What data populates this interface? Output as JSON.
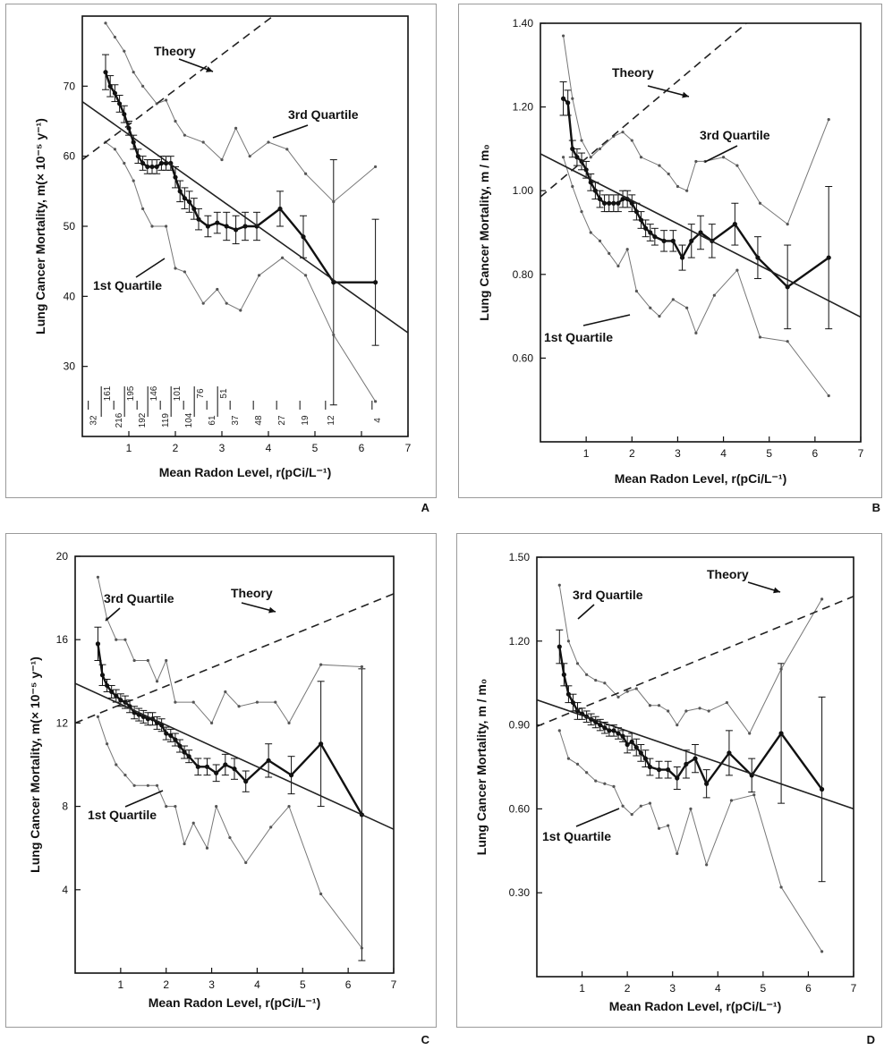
{
  "chart_data": [
    {
      "id": "A",
      "type": "line",
      "panel_letter": "A",
      "xlabel": "Mean Radon Level, r(pCi/L⁻¹)",
      "ylabel": "Lung Cancer Mortality, m(× 10⁻⁵ y⁻¹)",
      "xlim": [
        0,
        7
      ],
      "ylim": [
        20,
        80
      ],
      "x_ticks": [
        1,
        2,
        3,
        4,
        5,
        6,
        7
      ],
      "y_ticks": [
        30,
        40,
        50,
        60,
        70
      ],
      "y_tick_decimals": 0,
      "annotations": {
        "theory": "Theory",
        "third_quartile": "3rd Quartile",
        "first_quartile": "1st Quartile"
      },
      "series": [
        {
          "role": "mean",
          "x": [
            0.5,
            0.6,
            0.7,
            0.8,
            0.9,
            1.0,
            1.1,
            1.2,
            1.3,
            1.4,
            1.5,
            1.6,
            1.7,
            1.8,
            1.9,
            2.0,
            2.1,
            2.2,
            2.3,
            2.4,
            2.5,
            2.7,
            2.9,
            3.1,
            3.3,
            3.5,
            3.75,
            4.25,
            4.75,
            5.4,
            6.3
          ],
          "y": [
            72,
            70,
            69,
            67.5,
            66,
            64,
            62,
            60,
            59,
            58.5,
            58.5,
            58.5,
            59,
            59,
            59,
            57,
            55,
            54,
            53.5,
            52.5,
            51,
            50,
            50.5,
            50,
            49.5,
            50,
            50,
            52.5,
            48.5,
            42,
            42
          ],
          "err": [
            2.5,
            1.5,
            1.2,
            1.2,
            1.2,
            1.0,
            1.0,
            1.0,
            1.0,
            1.0,
            1.0,
            1.0,
            1.0,
            1.0,
            1.0,
            1.5,
            1.5,
            1.5,
            1.5,
            1.5,
            1.5,
            1.5,
            1.5,
            2.0,
            2.0,
            2.0,
            2.0,
            2.5,
            3.0,
            17.5,
            9.0
          ]
        },
        {
          "role": "third_quartile",
          "x": [
            0.5,
            0.7,
            0.9,
            1.1,
            1.3,
            1.6,
            1.8,
            2.0,
            2.2,
            2.6,
            3.0,
            3.3,
            3.6,
            4.0,
            4.4,
            4.8,
            5.4,
            6.3
          ],
          "y": [
            79,
            77,
            75,
            72,
            70,
            67.5,
            68,
            65,
            63,
            62,
            59.5,
            64,
            60,
            62,
            61,
            57.5,
            53.5,
            58.5
          ]
        },
        {
          "role": "first_quartile",
          "x": [
            0.5,
            0.7,
            0.9,
            1.1,
            1.3,
            1.5,
            1.8,
            2.0,
            2.2,
            2.6,
            2.9,
            3.1,
            3.4,
            3.8,
            4.3,
            4.8,
            5.4,
            6.3
          ],
          "y": [
            62,
            61,
            59,
            56.5,
            52.5,
            50,
            50,
            44,
            43.5,
            39,
            41,
            39,
            38,
            43,
            45.5,
            43,
            34.5,
            25
          ]
        },
        {
          "role": "fit",
          "x": [
            0,
            7
          ],
          "y": [
            67.8,
            34.8
          ]
        },
        {
          "role": "theory",
          "x": [
            0,
            4.5
          ],
          "y": [
            59.5,
            82
          ]
        }
      ],
      "bin_counts": {
        "top": [
          "161",
          "195",
          "146",
          "101",
          "76",
          "51"
        ],
        "bottom": [
          "32",
          "216",
          "192",
          "119",
          "104",
          "61",
          "37",
          "48",
          "27",
          "19",
          "12",
          "4"
        ]
      }
    },
    {
      "id": "B",
      "type": "line",
      "panel_letter": "B",
      "xlabel": "Mean Radon Level, r(pCi/L⁻¹)",
      "ylabel": "Lung Cancer Mortality, m / m₀",
      "xlim": [
        0,
        7
      ],
      "ylim": [
        0.4,
        1.4
      ],
      "x_ticks": [
        1,
        2,
        3,
        4,
        5,
        6,
        7
      ],
      "y_ticks": [
        0.6,
        0.8,
        1.0,
        1.2,
        1.4
      ],
      "y_tick_decimals": 2,
      "annotations": {
        "theory": "Theory",
        "third_quartile": "3rd Quartile",
        "first_quartile": "1st Quartile"
      },
      "series": [
        {
          "role": "mean",
          "x": [
            0.5,
            0.6,
            0.7,
            0.8,
            0.9,
            1.0,
            1.1,
            1.2,
            1.3,
            1.4,
            1.5,
            1.6,
            1.7,
            1.8,
            1.9,
            2.0,
            2.1,
            2.2,
            2.3,
            2.4,
            2.5,
            2.7,
            2.9,
            3.1,
            3.3,
            3.5,
            3.75,
            4.25,
            4.75,
            5.4,
            6.3
          ],
          "y": [
            1.22,
            1.21,
            1.1,
            1.08,
            1.07,
            1.05,
            1.02,
            1.0,
            0.98,
            0.97,
            0.97,
            0.97,
            0.97,
            0.98,
            0.98,
            0.97,
            0.95,
            0.93,
            0.91,
            0.9,
            0.89,
            0.88,
            0.88,
            0.84,
            0.88,
            0.9,
            0.88,
            0.92,
            0.84,
            0.77,
            0.84
          ],
          "err": [
            0.04,
            0.03,
            0.02,
            0.02,
            0.02,
            0.02,
            0.02,
            0.02,
            0.02,
            0.02,
            0.02,
            0.02,
            0.02,
            0.02,
            0.02,
            0.02,
            0.02,
            0.02,
            0.02,
            0.02,
            0.02,
            0.025,
            0.025,
            0.03,
            0.04,
            0.04,
            0.04,
            0.05,
            0.05,
            0.1,
            0.17
          ]
        },
        {
          "role": "third_quartile",
          "x": [
            0.5,
            0.7,
            0.9,
            1.1,
            1.3,
            1.6,
            1.8,
            2.0,
            2.2,
            2.6,
            2.8,
            3.0,
            3.2,
            3.4,
            3.6,
            4.0,
            4.3,
            4.8,
            5.4,
            6.3
          ],
          "y": [
            1.37,
            1.22,
            1.12,
            1.08,
            1.1,
            1.13,
            1.14,
            1.12,
            1.08,
            1.06,
            1.04,
            1.01,
            1.0,
            1.07,
            1.07,
            1.08,
            1.06,
            0.97,
            0.92,
            1.17
          ]
        },
        {
          "role": "first_quartile",
          "x": [
            0.5,
            0.7,
            0.9,
            1.1,
            1.3,
            1.5,
            1.7,
            1.9,
            2.1,
            2.4,
            2.6,
            2.9,
            3.2,
            3.4,
            3.8,
            4.3,
            4.8,
            5.4,
            6.3
          ],
          "y": [
            1.08,
            1.01,
            0.95,
            0.9,
            0.88,
            0.85,
            0.82,
            0.86,
            0.76,
            0.72,
            0.7,
            0.74,
            0.72,
            0.66,
            0.75,
            0.81,
            0.65,
            0.64,
            0.51
          ]
        },
        {
          "role": "fit",
          "x": [
            0,
            7
          ],
          "y": [
            1.088,
            0.698
          ]
        },
        {
          "role": "theory",
          "x": [
            0,
            4.5
          ],
          "y": [
            0.985,
            1.4
          ]
        }
      ]
    },
    {
      "id": "C",
      "type": "line",
      "panel_letter": "C",
      "xlabel": "Mean Radon Level, r(pCi/L⁻¹)",
      "ylabel": "Lung Cancer Mortality, m(× 10⁻⁵ y⁻¹)",
      "xlim": [
        0,
        7
      ],
      "ylim": [
        0,
        20
      ],
      "x_ticks": [
        1,
        2,
        3,
        4,
        5,
        6,
        7
      ],
      "y_ticks": [
        4,
        8,
        12,
        16,
        20
      ],
      "y_tick_decimals": 0,
      "annotations": {
        "theory": "Theory",
        "third_quartile": "3rd Quartile",
        "first_quartile": "1st Quartile"
      },
      "series": [
        {
          "role": "mean",
          "x": [
            0.5,
            0.6,
            0.7,
            0.8,
            0.9,
            1.0,
            1.1,
            1.2,
            1.3,
            1.4,
            1.5,
            1.6,
            1.7,
            1.8,
            1.9,
            2.0,
            2.1,
            2.2,
            2.3,
            2.4,
            2.5,
            2.7,
            2.9,
            3.1,
            3.3,
            3.5,
            3.75,
            4.25,
            4.75,
            5.4,
            6.3
          ],
          "y": [
            15.8,
            14.3,
            13.8,
            13.5,
            13.3,
            13.1,
            13.0,
            12.8,
            12.5,
            12.4,
            12.3,
            12.2,
            12.2,
            12.0,
            11.9,
            11.5,
            11.4,
            11.2,
            10.9,
            10.6,
            10.4,
            9.9,
            9.9,
            9.6,
            10.0,
            9.8,
            9.2,
            10.2,
            9.5,
            11.0,
            7.6
          ],
          "err": [
            0.8,
            0.5,
            0.3,
            0.3,
            0.3,
            0.3,
            0.3,
            0.3,
            0.3,
            0.3,
            0.3,
            0.3,
            0.3,
            0.3,
            0.3,
            0.3,
            0.3,
            0.3,
            0.3,
            0.3,
            0.3,
            0.4,
            0.4,
            0.4,
            0.5,
            0.5,
            0.5,
            0.8,
            0.9,
            3.0,
            7.0
          ]
        },
        {
          "role": "third_quartile",
          "x": [
            0.5,
            0.7,
            0.9,
            1.1,
            1.3,
            1.6,
            1.8,
            2.0,
            2.2,
            2.6,
            3.0,
            3.3,
            3.6,
            4.0,
            4.4,
            4.7,
            5.4,
            6.3
          ],
          "y": [
            19,
            17,
            16,
            16,
            15,
            15,
            14,
            15,
            13,
            13,
            12,
            13.5,
            12.8,
            13,
            13,
            12,
            14.8,
            14.7
          ]
        },
        {
          "role": "first_quartile",
          "x": [
            0.5,
            0.7,
            0.9,
            1.1,
            1.3,
            1.6,
            1.8,
            2.0,
            2.2,
            2.4,
            2.6,
            2.9,
            3.1,
            3.4,
            3.75,
            4.3,
            4.7,
            5.4,
            6.3
          ],
          "y": [
            12.3,
            11,
            10,
            9.5,
            9,
            9,
            9,
            8,
            8,
            6.2,
            7.2,
            6.0,
            8.0,
            6.5,
            5.3,
            7.0,
            8.0,
            3.8,
            1.2
          ]
        },
        {
          "role": "fit",
          "x": [
            0,
            7
          ],
          "y": [
            13.9,
            6.9
          ]
        },
        {
          "role": "theory",
          "x": [
            0,
            7
          ],
          "y": [
            12.0,
            18.2
          ]
        }
      ]
    },
    {
      "id": "D",
      "type": "line",
      "panel_letter": "D",
      "xlabel": "Mean Radon Level, r(pCi/L⁻¹)",
      "ylabel": "Lung Cancer Mortality, m / m₀",
      "xlim": [
        0,
        7
      ],
      "ylim": [
        0,
        1.5
      ],
      "x_ticks": [
        1,
        2,
        3,
        4,
        5,
        6,
        7
      ],
      "y_ticks": [
        0.3,
        0.6,
        0.9,
        1.2,
        1.5
      ],
      "y_tick_decimals": 2,
      "annotations": {
        "theory": "Theory",
        "third_quartile": "3rd Quartile",
        "first_quartile": "1st Quartile"
      },
      "series": [
        {
          "role": "mean",
          "x": [
            0.5,
            0.6,
            0.7,
            0.8,
            0.9,
            1.0,
            1.1,
            1.2,
            1.3,
            1.4,
            1.5,
            1.6,
            1.7,
            1.8,
            1.9,
            2.0,
            2.1,
            2.2,
            2.3,
            2.4,
            2.5,
            2.7,
            2.9,
            3.1,
            3.3,
            3.5,
            3.75,
            4.25,
            4.75,
            5.4,
            6.3
          ],
          "y": [
            1.18,
            1.08,
            1.01,
            0.98,
            0.95,
            0.94,
            0.93,
            0.92,
            0.91,
            0.9,
            0.89,
            0.88,
            0.88,
            0.87,
            0.86,
            0.83,
            0.84,
            0.82,
            0.8,
            0.78,
            0.75,
            0.74,
            0.74,
            0.71,
            0.76,
            0.78,
            0.69,
            0.8,
            0.72,
            0.87,
            0.67
          ],
          "err": [
            0.06,
            0.04,
            0.03,
            0.03,
            0.03,
            0.02,
            0.02,
            0.02,
            0.02,
            0.02,
            0.02,
            0.02,
            0.02,
            0.02,
            0.02,
            0.03,
            0.03,
            0.03,
            0.03,
            0.03,
            0.03,
            0.03,
            0.03,
            0.04,
            0.05,
            0.05,
            0.05,
            0.08,
            0.06,
            0.25,
            0.33
          ]
        },
        {
          "role": "third_quartile",
          "x": [
            0.5,
            0.7,
            0.9,
            1.1,
            1.3,
            1.5,
            1.8,
            2.0,
            2.2,
            2.5,
            2.7,
            2.9,
            3.1,
            3.3,
            3.6,
            3.8,
            4.2,
            4.7,
            5.4,
            6.3
          ],
          "y": [
            1.4,
            1.2,
            1.12,
            1.08,
            1.06,
            1.05,
            1.0,
            1.02,
            1.03,
            0.97,
            0.97,
            0.95,
            0.9,
            0.95,
            0.96,
            0.95,
            0.98,
            0.87,
            1.1,
            1.35
          ]
        },
        {
          "role": "first_quartile",
          "x": [
            0.5,
            0.7,
            0.9,
            1.1,
            1.3,
            1.5,
            1.7,
            1.9,
            2.1,
            2.3,
            2.5,
            2.7,
            2.9,
            3.1,
            3.4,
            3.75,
            4.3,
            4.8,
            5.4,
            6.3
          ],
          "y": [
            0.88,
            0.78,
            0.76,
            0.73,
            0.7,
            0.69,
            0.68,
            0.61,
            0.58,
            0.61,
            0.62,
            0.53,
            0.54,
            0.44,
            0.6,
            0.4,
            0.63,
            0.65,
            0.32,
            0.09
          ]
        },
        {
          "role": "fit",
          "x": [
            0,
            7
          ],
          "y": [
            0.99,
            0.6
          ]
        },
        {
          "role": "theory",
          "x": [
            0,
            7
          ],
          "y": [
            0.895,
            1.36
          ]
        }
      ]
    }
  ]
}
